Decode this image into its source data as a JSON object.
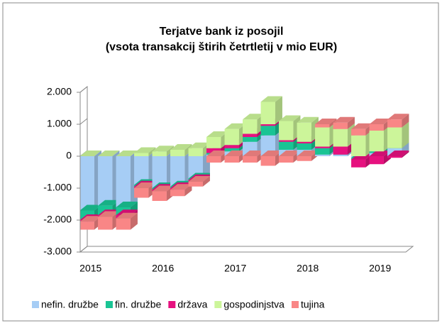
{
  "chart_data": {
    "type": "bar3d_stacked",
    "title": [
      "Terjatve bank iz posojil",
      "(vsota transakcij štirih četrtletij v mio EUR)"
    ],
    "categories": [
      "2015",
      null,
      null,
      null,
      "2016",
      null,
      null,
      null,
      "2017",
      null,
      null,
      null,
      "2018",
      null,
      null,
      null,
      "2019",
      null
    ],
    "series": [
      {
        "name": "nefin. družbe",
        "color": "#a6cdf5",
        "values": [
          -1700,
          -1550,
          -1600,
          -900,
          -1000,
          -950,
          -700,
          50,
          150,
          450,
          650,
          200,
          200,
          50,
          50,
          -50,
          100,
          250
        ]
      },
      {
        "name": "fin. družbe",
        "color": "#19c494",
        "values": [
          -300,
          -300,
          -250,
          -50,
          -50,
          -50,
          -50,
          50,
          100,
          150,
          300,
          250,
          200,
          200,
          0,
          -50,
          50,
          0
        ]
      },
      {
        "name": "država",
        "color": "#e6117f",
        "values": [
          -50,
          -50,
          -100,
          -50,
          -50,
          -50,
          -50,
          150,
          100,
          100,
          50,
          50,
          50,
          50,
          250,
          -250,
          -250,
          -50
        ]
      },
      {
        "name": "gospodinjstva",
        "color": "#ccf59a",
        "values": [
          0,
          0,
          0,
          100,
          150,
          200,
          250,
          350,
          500,
          450,
          700,
          600,
          600,
          600,
          550,
          650,
          650,
          650
        ]
      },
      {
        "name": "tujina",
        "color": "#f98686",
        "values": [
          -250,
          -400,
          -350,
          -300,
          -300,
          -200,
          -150,
          -200,
          -200,
          -200,
          -300,
          -200,
          -150,
          100,
          200,
          200,
          200,
          250
        ]
      }
    ],
    "ylim": [
      -3000,
      2000
    ],
    "yticks": [
      {
        "value": -3000,
        "label": "-3.000"
      },
      {
        "value": -2000,
        "label": "-2.000"
      },
      {
        "value": -1000,
        "label": "-1.000"
      },
      0,
      {
        "value": 1000,
        "label": "1.000"
      },
      {
        "value": 2000,
        "label": "2.000"
      }
    ],
    "legend": "bottom"
  }
}
